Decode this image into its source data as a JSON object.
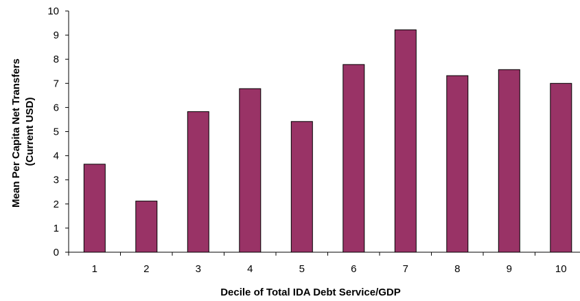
{
  "chart_data": {
    "type": "bar",
    "title": "",
    "xlabel": "Decile of Total IDA Debt Service/GDP",
    "ylabel_lines": [
      "Mean Per Capita Net Transfers",
      "(Current USD)"
    ],
    "categories": [
      "1",
      "2",
      "3",
      "4",
      "5",
      "6",
      "7",
      "8",
      "9",
      "10"
    ],
    "values": [
      3.65,
      2.12,
      5.83,
      6.78,
      5.42,
      7.78,
      9.22,
      7.32,
      7.57,
      7.0
    ],
    "ylim": [
      0,
      10
    ],
    "yticks": [
      "0",
      "1",
      "2",
      "3",
      "4",
      "5",
      "6",
      "7",
      "8",
      "9",
      "10"
    ],
    "grid": false,
    "legend": "none",
    "bar_color": "#993366"
  }
}
